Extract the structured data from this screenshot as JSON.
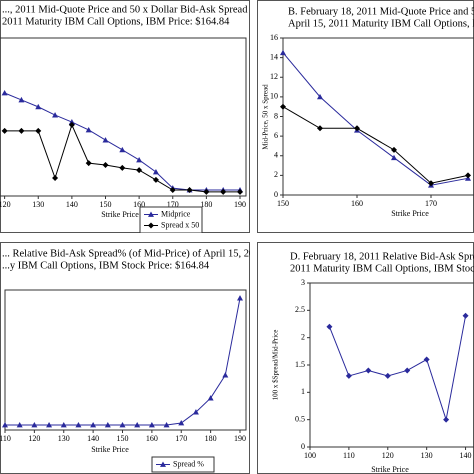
{
  "chart_data": [
    {
      "type": "line",
      "title": [
        "..., 2011 Mid-Quote Price and 50 x Dollar Bid-Ask Spread of",
        "2011 Maturity IBM Call Options, IBM Price: $164.84"
      ],
      "xlabel": "Strike Price",
      "x": [
        120,
        125,
        130,
        135,
        140,
        145,
        150,
        155,
        160,
        165,
        170,
        175,
        180,
        185,
        190
      ],
      "xlim": [
        110,
        190
      ],
      "xticks": [
        120,
        130,
        140,
        150,
        160,
        170,
        180,
        190
      ],
      "ylim": [
        0,
        50
      ],
      "series": [
        {
          "name": "Midprice",
          "color": "#2a2a9c",
          "marker": "triangle",
          "values": [
            32.6,
            30.4,
            28.2,
            25.6,
            23.4,
            20.9,
            17.7,
            14.6,
            11.4,
            7.6,
            2.5,
            1.9,
            1.9,
            1.9,
            1.9
          ]
        },
        {
          "name": "Spread x 50",
          "color": "#000000",
          "marker": "diamond",
          "values": [
            20.6,
            20.6,
            20.6,
            5.7,
            22.5,
            10.4,
            9.8,
            8.9,
            8.2,
            5.1,
            1.9,
            1.9,
            1.3,
            1.3,
            1.3
          ]
        }
      ]
    },
    {
      "type": "line",
      "title": [
        "B. February 18, 2011 Mid-Quote Price and 50 x Do",
        "April 15, 2011 Maturity IBM Call Options, IBM S"
      ],
      "xlabel": "Strike Price",
      "ylabel": "Mid-Price, 50 x Spread",
      "x": [
        150,
        155,
        160,
        165,
        170,
        175
      ],
      "xlim": [
        150,
        180
      ],
      "xticks": [
        150,
        160,
        170
      ],
      "ylim": [
        0,
        16
      ],
      "yticks": [
        0,
        2,
        4,
        6,
        8,
        10,
        12,
        14,
        16
      ],
      "series": [
        {
          "color": "#2a2a9c",
          "marker": "triangle",
          "values": [
            14.5,
            10,
            6.6,
            3.8,
            1.0,
            1.7
          ]
        },
        {
          "color": "#000000",
          "marker": "diamond",
          "values": [
            9,
            6.8,
            6.8,
            4.6,
            1.2,
            2.0
          ]
        }
      ]
    },
    {
      "type": "line",
      "title": [
        "... Relative Bid-Ask Spread% (of Mid-Price) of April 15, 2011",
        "...y IBM Call Options, IBM Stock Price: $164.84"
      ],
      "xlabel": "Strike Price",
      "x": [
        110,
        115,
        120,
        125,
        130,
        135,
        140,
        145,
        150,
        155,
        160,
        165,
        170,
        175,
        180,
        185,
        190
      ],
      "xlim": [
        110,
        190
      ],
      "xticks": [
        110,
        120,
        130,
        140,
        150,
        160,
        170,
        180,
        190
      ],
      "ylim": [
        0,
        50
      ],
      "series": [
        {
          "name": "Spread %",
          "color": "#2a2a9c",
          "marker": "triangle",
          "values": [
            1.8,
            1.8,
            1.8,
            1.8,
            1.8,
            1.8,
            1.8,
            1.8,
            1.8,
            1.8,
            1.8,
            1.8,
            2.5,
            6.4,
            11.4,
            19.6,
            47.1
          ]
        }
      ]
    },
    {
      "type": "line",
      "title": [
        "D. February 18, 2011 Relative Bid-Ask Spread% (of",
        "2011 Maturity IBM Call Options, IBM Stock Price"
      ],
      "xlabel": "Strike Price",
      "ylabel": "100 x $Spread/Mid-Price",
      "x": [
        105,
        110,
        115,
        120,
        125,
        130,
        135,
        140
      ],
      "xlim": [
        100,
        145
      ],
      "xticks": [
        100,
        110,
        120,
        130,
        140
      ],
      "ylim": [
        0,
        3
      ],
      "yticks": [
        0,
        0.5,
        1,
        1.5,
        2,
        2.5,
        3
      ],
      "series": [
        {
          "color": "#2a2a9c",
          "marker": "diamond",
          "values": [
            2.2,
            1.3,
            1.4,
            1.3,
            1.4,
            1.6,
            0.5,
            2.4
          ]
        }
      ]
    }
  ]
}
